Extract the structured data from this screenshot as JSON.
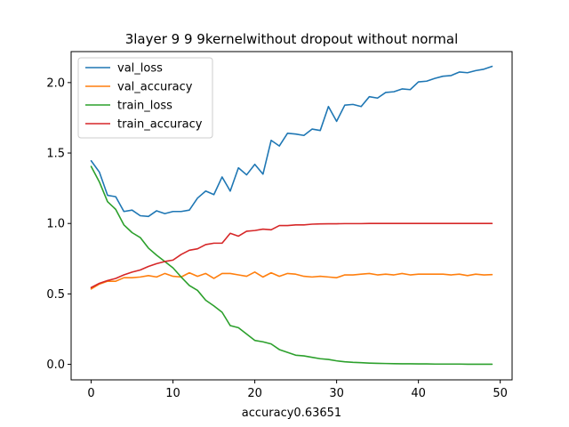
{
  "chart_data": {
    "type": "line",
    "title": "3layer  9 9 9kernelwithout dropout without normal",
    "xlabel": "accuracy0.63651",
    "ylabel": "",
    "xlim": [
      -2.45,
      51.45
    ],
    "ylim": [
      -0.11,
      2.22
    ],
    "xticks": [
      0,
      10,
      20,
      30,
      40,
      50
    ],
    "yticks": [
      0.0,
      0.5,
      1.0,
      1.5,
      2.0
    ],
    "grid": false,
    "legend_position": "top-left",
    "x": [
      0,
      1,
      2,
      3,
      4,
      5,
      6,
      7,
      8,
      9,
      10,
      11,
      12,
      13,
      14,
      15,
      16,
      17,
      18,
      19,
      20,
      21,
      22,
      23,
      24,
      25,
      26,
      27,
      28,
      29,
      30,
      31,
      32,
      33,
      34,
      35,
      36,
      37,
      38,
      39,
      40,
      41,
      42,
      43,
      44,
      45,
      46,
      47,
      48,
      49
    ],
    "series": [
      {
        "name": "val_loss",
        "color": "#1f77b4",
        "values": [
          1.445,
          1.365,
          1.2,
          1.19,
          1.085,
          1.095,
          1.055,
          1.05,
          1.09,
          1.07,
          1.085,
          1.085,
          1.095,
          1.18,
          1.23,
          1.205,
          1.33,
          1.23,
          1.395,
          1.345,
          1.42,
          1.35,
          1.59,
          1.55,
          1.64,
          1.635,
          1.625,
          1.67,
          1.66,
          1.83,
          1.725,
          1.84,
          1.845,
          1.83,
          1.9,
          1.89,
          1.93,
          1.935,
          1.955,
          1.95,
          2.005,
          2.01,
          2.03,
          2.045,
          2.05,
          2.075,
          2.07,
          2.085,
          2.095,
          2.115
        ]
      },
      {
        "name": "val_accuracy",
        "color": "#ff7f0e",
        "values": [
          0.535,
          0.57,
          0.59,
          0.59,
          0.615,
          0.615,
          0.62,
          0.63,
          0.62,
          0.645,
          0.625,
          0.62,
          0.65,
          0.625,
          0.645,
          0.61,
          0.645,
          0.645,
          0.635,
          0.625,
          0.655,
          0.62,
          0.65,
          0.625,
          0.645,
          0.64,
          0.625,
          0.62,
          0.625,
          0.62,
          0.615,
          0.635,
          0.635,
          0.64,
          0.645,
          0.635,
          0.64,
          0.635,
          0.645,
          0.635,
          0.64,
          0.64,
          0.64,
          0.64,
          0.635,
          0.64,
          0.63,
          0.64,
          0.635,
          0.637
        ]
      },
      {
        "name": "train_loss",
        "color": "#2ca02c",
        "values": [
          1.405,
          1.295,
          1.155,
          1.1,
          0.99,
          0.935,
          0.9,
          0.825,
          0.775,
          0.73,
          0.685,
          0.62,
          0.56,
          0.525,
          0.455,
          0.415,
          0.37,
          0.275,
          0.26,
          0.215,
          0.17,
          0.16,
          0.145,
          0.105,
          0.085,
          0.065,
          0.06,
          0.05,
          0.04,
          0.035,
          0.025,
          0.018,
          0.014,
          0.012,
          0.009,
          0.007,
          0.006,
          0.005,
          0.004,
          0.004,
          0.003,
          0.003,
          0.002,
          0.002,
          0.002,
          0.002,
          0.001,
          0.001,
          0.001,
          0.001
        ]
      },
      {
        "name": "train_accuracy",
        "color": "#d62728",
        "values": [
          0.545,
          0.575,
          0.595,
          0.61,
          0.635,
          0.655,
          0.67,
          0.695,
          0.715,
          0.73,
          0.74,
          0.78,
          0.81,
          0.82,
          0.85,
          0.86,
          0.86,
          0.93,
          0.91,
          0.945,
          0.95,
          0.96,
          0.955,
          0.985,
          0.985,
          0.99,
          0.99,
          0.995,
          0.997,
          0.998,
          0.998,
          0.999,
          0.999,
          0.999,
          1.0,
          1.0,
          1.0,
          1.0,
          1.0,
          1.0,
          1.0,
          1.0,
          1.0,
          1.0,
          1.0,
          1.0,
          1.0,
          1.0,
          1.0,
          1.0
        ]
      }
    ]
  }
}
